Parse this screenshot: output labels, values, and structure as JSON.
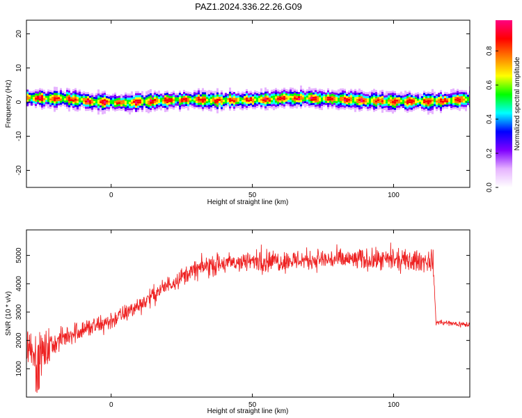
{
  "figure": {
    "title": "PAZ1.2024.336.22.26.G09"
  },
  "chart_data": [
    {
      "type": "heatmap",
      "title": "PAZ1.2024.336.22.26.G09",
      "xlabel": "Height of straight line (km)",
      "ylabel": "Frequency (Hz)",
      "xlim": [
        -30,
        127
      ],
      "ylim": [
        -25,
        24
      ],
      "x_ticks": [
        0,
        50,
        100
      ],
      "y_ticks": [
        -20,
        -10,
        0,
        10,
        20
      ],
      "grid": false,
      "colorbar": {
        "label": "Normalized spectral amplitude",
        "range": [
          0.0,
          0.98
        ],
        "ticks": [
          0.0,
          0.2,
          0.4,
          0.6,
          0.8
        ],
        "colormap": [
          "#ffffff",
          "#e6b3ff",
          "#8000ff",
          "#0000ff",
          "#00ffff",
          "#00ff00",
          "#ffff00",
          "#ff8000",
          "#ff0000",
          "#ff0080"
        ]
      },
      "ridge": {
        "center_freq_hz": [
          [
            -30,
            1.5
          ],
          [
            -15,
            1.2
          ],
          [
            -5,
            0.3
          ],
          [
            5,
            0.2
          ],
          [
            15,
            0.5
          ],
          [
            25,
            1.0
          ],
          [
            40,
            0.8
          ],
          [
            55,
            1.0
          ],
          [
            65,
            1.5
          ],
          [
            75,
            1.2
          ],
          [
            90,
            0.8
          ],
          [
            105,
            0.4
          ],
          [
            115,
            0.5
          ],
          [
            127,
            1.3
          ]
        ],
        "half_width_hz": 1.5
      }
    },
    {
      "type": "line",
      "xlabel": "Height of straight line (km)",
      "ylabel": "SNR (10 * v/v)",
      "xlim": [
        -30,
        127
      ],
      "ylim": [
        0,
        5900
      ],
      "x_ticks": [
        0,
        50,
        100
      ],
      "y_ticks": [
        1000,
        2000,
        3000,
        4000,
        5000
      ],
      "grid": false,
      "series_color": "#ee2222",
      "trend": {
        "x": [
          -30,
          -25,
          -20,
          -15,
          -10,
          -5,
          0,
          5,
          10,
          15,
          20,
          25,
          30,
          35,
          40,
          50,
          60,
          70,
          80,
          90,
          100,
          110,
          114,
          115,
          120,
          127
        ],
        "y": [
          1800,
          1500,
          1900,
          2200,
          2400,
          2500,
          2700,
          2950,
          3250,
          3600,
          3950,
          4250,
          4500,
          4650,
          4700,
          4800,
          4800,
          4850,
          4850,
          4850,
          4800,
          4800,
          4800,
          2650,
          2600,
          2550
        ]
      }
    }
  ]
}
